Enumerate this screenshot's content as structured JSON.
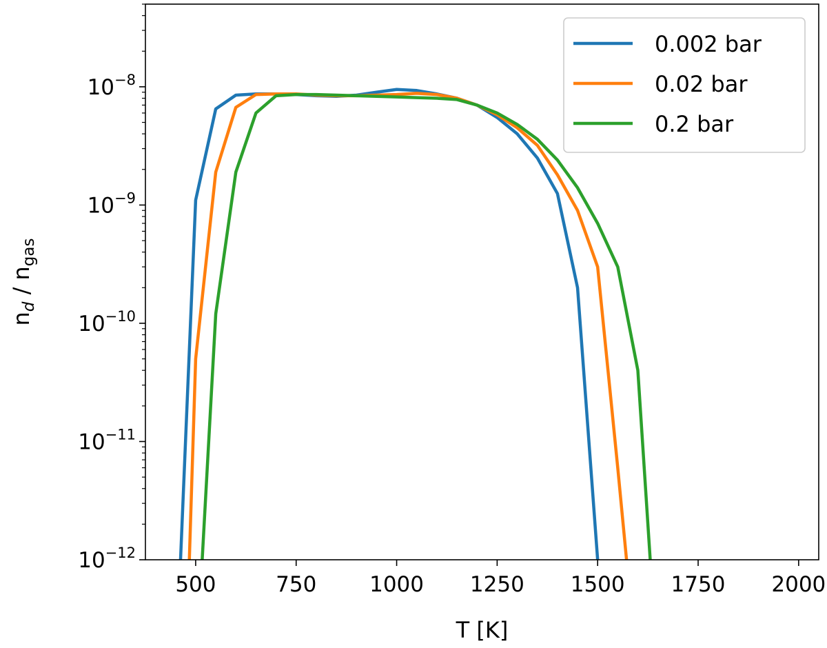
{
  "chart_data": {
    "type": "line",
    "xlabel": "T [K]",
    "ylabel": {
      "base": "n",
      "sub1": "d",
      "mid": " / n",
      "sub2": "gas"
    },
    "xlim": [
      375,
      2050
    ],
    "ylim": [
      1e-12,
      5e-08
    ],
    "yscale": "log",
    "grid": false,
    "legend_position": "top-right",
    "x_ticks": [
      500,
      750,
      1000,
      1250,
      1500,
      1750,
      2000
    ],
    "x_tick_labels": [
      "500",
      "750",
      "1000",
      "1250",
      "1500",
      "1750",
      "2000"
    ],
    "y_ticks": [
      -12,
      -11,
      -10,
      -9,
      -8
    ],
    "y_tick_labels": [
      {
        "base": "10",
        "exp": "−12"
      },
      {
        "base": "10",
        "exp": "−11"
      },
      {
        "base": "10",
        "exp": "−10"
      },
      {
        "base": "10",
        "exp": "−9"
      },
      {
        "base": "10",
        "exp": "−8"
      }
    ],
    "series": [
      {
        "name": "0.002 bar",
        "color": "#1f77b4",
        "x": [
          450,
          500,
          550,
          600,
          650,
          700,
          750,
          800,
          850,
          900,
          950,
          1000,
          1050,
          1100,
          1150,
          1200,
          1250,
          1300,
          1350,
          1400,
          1450,
          1500,
          1550
        ],
        "y": [
          1e-13,
          1.1e-09,
          6.5e-09,
          8.5e-09,
          8.7e-09,
          8.7e-09,
          8.6e-09,
          8.4e-09,
          8.3e-09,
          8.5e-09,
          9e-09,
          9.5e-09,
          9.3e-09,
          8.7e-09,
          8e-09,
          7e-09,
          5.5e-09,
          4e-09,
          2.5e-09,
          1.25e-09,
          2e-10,
          1e-12,
          1e-13
        ]
      },
      {
        "name": "0.02 bar",
        "color": "#ff7f0e",
        "x": [
          475,
          500,
          550,
          600,
          650,
          700,
          750,
          800,
          850,
          900,
          950,
          1000,
          1050,
          1100,
          1150,
          1200,
          1250,
          1300,
          1350,
          1400,
          1450,
          1500,
          1550,
          1600
        ],
        "y": [
          1e-13,
          5e-11,
          1.9e-09,
          6.7e-09,
          8.6e-09,
          8.7e-09,
          8.7e-09,
          8.5e-09,
          8.4e-09,
          8.4e-09,
          8.5e-09,
          8.6e-09,
          8.8e-09,
          8.6e-09,
          8e-09,
          7e-09,
          5.8e-09,
          4.5e-09,
          3.2e-09,
          1.8e-09,
          9e-10,
          3e-10,
          6e-12,
          1e-13
        ]
      },
      {
        "name": "0.2 bar",
        "color": "#2ca02c",
        "x": [
          500,
          550,
          600,
          650,
          700,
          750,
          800,
          850,
          900,
          950,
          1000,
          1050,
          1100,
          1150,
          1200,
          1250,
          1300,
          1350,
          1400,
          1450,
          1500,
          1550,
          1600,
          1650
        ],
        "y": [
          1e-13,
          1.2e-10,
          1.9e-09,
          6e-09,
          8.4e-09,
          8.6e-09,
          8.6e-09,
          8.5e-09,
          8.4e-09,
          8.3e-09,
          8.2e-09,
          8.1e-09,
          8e-09,
          7.8e-09,
          7e-09,
          6e-09,
          4.8e-09,
          3.6e-09,
          2.4e-09,
          1.4e-09,
          7e-10,
          3e-10,
          4e-11,
          1e-13
        ]
      }
    ]
  }
}
